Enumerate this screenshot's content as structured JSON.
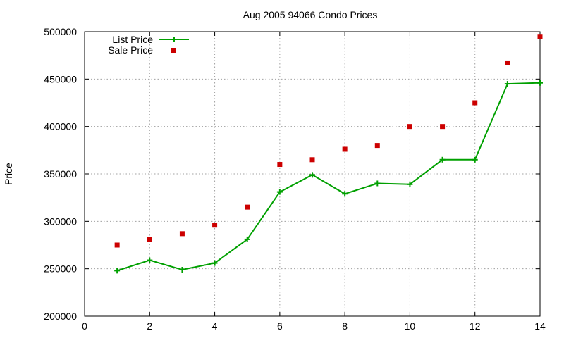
{
  "chart_data": {
    "type": "line",
    "title": "Aug 2005 94066 Condo Prices",
    "xlabel": "",
    "ylabel": "Price",
    "xlim": [
      0,
      14
    ],
    "ylim": [
      200000,
      500000
    ],
    "x_ticks": [
      "0",
      "2",
      "4",
      "6",
      "8",
      "10",
      "12",
      "14"
    ],
    "y_ticks": [
      "200000",
      "250000",
      "300000",
      "350000",
      "400000",
      "450000",
      "500000"
    ],
    "grid": true,
    "legend_position": "top-left",
    "series": [
      {
        "name": "List Price",
        "kind": "line-with-plus-markers",
        "color": "#00a000",
        "x": [
          1,
          2,
          3,
          4,
          5,
          6,
          7,
          8,
          9,
          10,
          11,
          12,
          13,
          14
        ],
        "values": [
          248000,
          259000,
          249000,
          256000,
          281000,
          331000,
          349000,
          329000,
          340000,
          339000,
          365000,
          365000,
          445000,
          446000
        ]
      },
      {
        "name": "Sale Price",
        "kind": "square-points",
        "color": "#cc0000",
        "x": [
          1,
          2,
          3,
          4,
          5,
          6,
          7,
          8,
          9,
          10,
          11,
          12,
          13,
          14
        ],
        "values": [
          275000,
          281000,
          287000,
          296000,
          315000,
          360000,
          365000,
          376000,
          380000,
          400000,
          400000,
          425000,
          467000,
          495000
        ]
      }
    ]
  }
}
